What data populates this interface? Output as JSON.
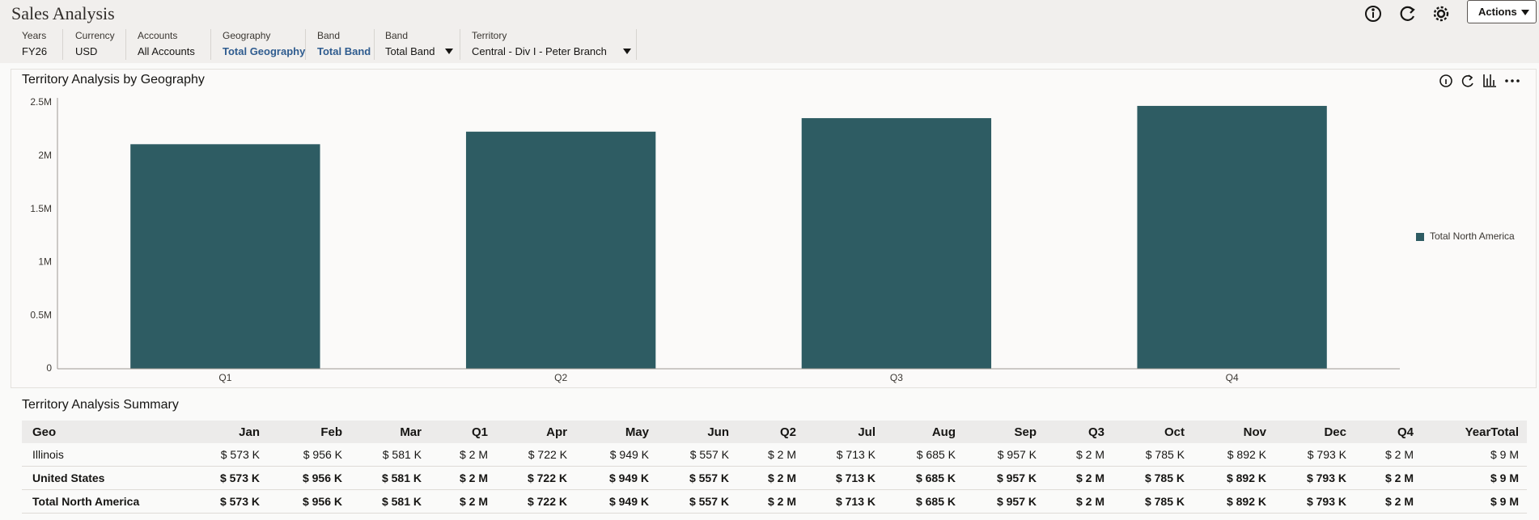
{
  "header": {
    "title": "Sales Analysis",
    "filters": [
      {
        "label": "Years",
        "value": "FY26"
      },
      {
        "label": "Currency",
        "value": "USD"
      },
      {
        "label": "Accounts",
        "value": "All Accounts"
      },
      {
        "label": "Geography",
        "value": "Total Geography"
      },
      {
        "label": "Band",
        "value": "Total Band"
      },
      {
        "label": "Band",
        "value": "Total Band"
      },
      {
        "label": "Territory",
        "value": "Central -  Div I - Peter Branch"
      }
    ],
    "actions": "Actions"
  },
  "chart_data": {
    "type": "bar",
    "title": "Territory Analysis by Geography",
    "categories": [
      "Q1",
      "Q2",
      "Q3",
      "Q4"
    ],
    "series": [
      {
        "name": "Total North America",
        "color": "#2e5c63",
        "values": [
          2110000,
          2228000,
          2355000,
          2470000
        ]
      }
    ],
    "ylim": [
      0,
      2500000
    ],
    "yticks": [
      0,
      {
        "value": 500000,
        "label": "0.5M"
      },
      {
        "value": 1000000,
        "label": "1M"
      },
      {
        "value": 1500000,
        "label": "1.5M"
      },
      {
        "value": 2000000,
        "label": "2M"
      },
      {
        "value": 2500000,
        "label": "2.5M"
      }
    ],
    "grid": false,
    "legend": "right"
  },
  "table": {
    "title": "Territory Analysis Summary",
    "columns": [
      "Geo",
      "Jan",
      "Feb",
      "Mar",
      "Q1",
      "Apr",
      "May",
      "Jun",
      "Q2",
      "Jul",
      "Aug",
      "Sep",
      "Q3",
      "Oct",
      "Nov",
      "Dec",
      "Q4",
      "YearTotal"
    ],
    "rows": [
      [
        "Illinois",
        "$ 573 K",
        "$ 956 K",
        "$ 581 K",
        "$ 2 M",
        "$ 722 K",
        "$ 949 K",
        "$ 557 K",
        "$ 2 M",
        "$ 713 K",
        "$ 685 K",
        "$ 957 K",
        "$ 2 M",
        "$ 785 K",
        "$ 892 K",
        "$ 793 K",
        "$ 2 M",
        "$ 9 M"
      ],
      [
        "United States",
        "$ 573 K",
        "$ 956 K",
        "$ 581 K",
        "$ 2 M",
        "$ 722 K",
        "$ 949 K",
        "$ 557 K",
        "$ 2 M",
        "$ 713 K",
        "$ 685 K",
        "$ 957 K",
        "$ 2 M",
        "$ 785 K",
        "$ 892 K",
        "$ 793 K",
        "$ 2 M",
        "$ 9 M"
      ],
      [
        "Total North America",
        "$ 573 K",
        "$ 956 K",
        "$ 581 K",
        "$ 2 M",
        "$ 722 K",
        "$ 949 K",
        "$ 557 K",
        "$ 2 M",
        "$ 713 K",
        "$ 685 K",
        "$ 957 K",
        "$ 2 M",
        "$ 785 K",
        "$ 892 K",
        "$ 793 K",
        "$ 2 M",
        "$ 9 M"
      ]
    ]
  }
}
